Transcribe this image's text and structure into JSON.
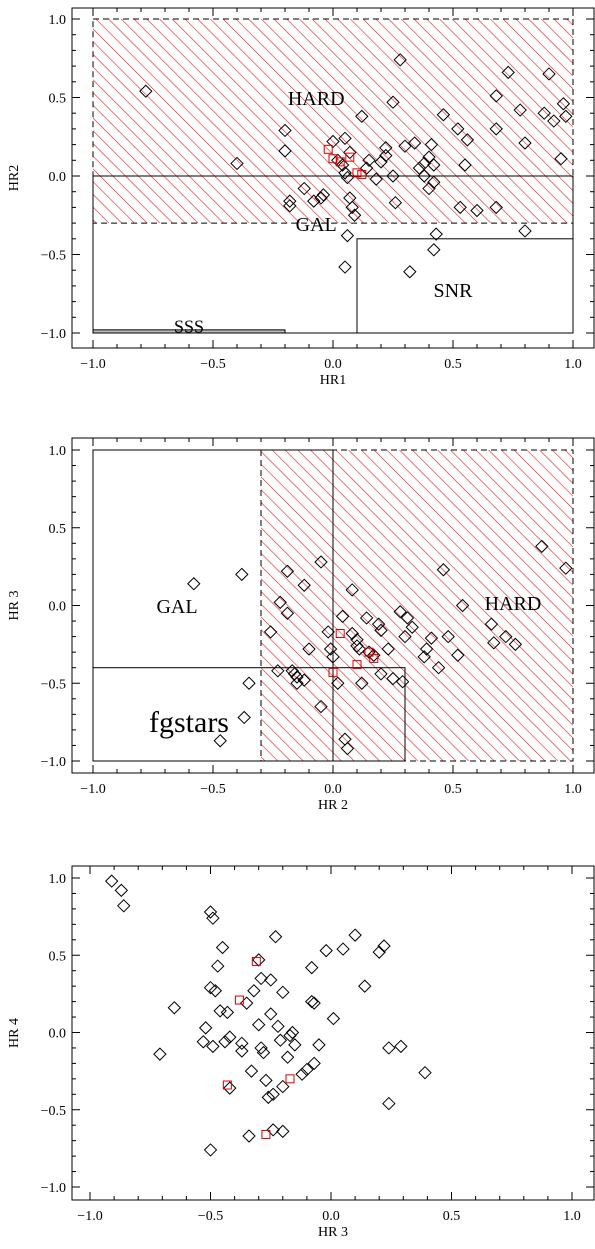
{
  "chart_data": [
    {
      "type": "scatter",
      "xlabel": "HR1",
      "ylabel": "HR2",
      "xlim": [
        -1.0,
        1.0
      ],
      "ylim": [
        -1.05,
        1.05
      ],
      "xticks": [
        "−1.0",
        "−0.5",
        "0.0",
        "0.5",
        "1.0"
      ],
      "yticks": [
        "−1.0",
        "−0.5",
        "0.0",
        "0.5",
        "1.0"
      ],
      "xtick_values": [
        -1.0,
        -0.5,
        0.0,
        0.5,
        1.0
      ],
      "ytick_values": [
        -1.0,
        -0.5,
        0.0,
        0.5,
        1.0
      ],
      "regions": [
        {
          "label": "HARD",
          "x0": -1.0,
          "x1": 1.0,
          "y0": -0.3,
          "y1": 1.0,
          "hatched": true
        },
        {
          "label": "GAL",
          "x0": -1.0,
          "x1": 1.0,
          "y0": -1.0,
          "y1": 0.0,
          "hatched": false
        },
        {
          "label": "SNR",
          "x0": 0.1,
          "x1": 1.0,
          "y0": -1.0,
          "y1": -0.4,
          "hatched": false
        },
        {
          "label": "SSS",
          "x0": -1.0,
          "x1": -0.2,
          "y0": -1.0,
          "y1": -0.98,
          "hatched": false
        }
      ],
      "region_labels": [
        {
          "text": "HARD",
          "x": -0.07,
          "y": 0.48
        },
        {
          "text": "GAL",
          "x": -0.07,
          "y": -0.32
        },
        {
          "text": "SNR",
          "x": 0.5,
          "y": -0.74
        },
        {
          "text": "SSS",
          "x": -0.6,
          "y": -0.97
        }
      ],
      "series": [
        {
          "marker": "diamond",
          "points": [
            [
              -0.78,
              0.54
            ],
            [
              -0.4,
              0.08
            ],
            [
              -0.2,
              0.29
            ],
            [
              -0.2,
              0.16
            ],
            [
              -0.18,
              -0.16
            ],
            [
              -0.18,
              -0.19
            ],
            [
              -0.12,
              -0.08
            ],
            [
              -0.08,
              -0.16
            ],
            [
              -0.05,
              -0.14
            ],
            [
              -0.04,
              -0.12
            ],
            [
              0.0,
              0.22
            ],
            [
              0.02,
              0.1
            ],
            [
              0.04,
              0.07
            ],
            [
              0.05,
              0.24
            ],
            [
              0.05,
              0.02
            ],
            [
              0.06,
              -0.01
            ],
            [
              0.07,
              0.15
            ],
            [
              0.07,
              -0.14
            ],
            [
              0.08,
              -0.2
            ],
            [
              0.09,
              -0.25
            ],
            [
              0.06,
              -0.38
            ],
            [
              0.05,
              -0.58
            ],
            [
              0.12,
              0.38
            ],
            [
              0.14,
              0.05
            ],
            [
              0.15,
              0.1
            ],
            [
              0.18,
              -0.02
            ],
            [
              0.2,
              0.09
            ],
            [
              0.22,
              0.13
            ],
            [
              0.22,
              0.18
            ],
            [
              0.25,
              0.0
            ],
            [
              0.28,
              0.74
            ],
            [
              0.25,
              0.47
            ],
            [
              0.26,
              -0.17
            ],
            [
              0.3,
              0.19
            ],
            [
              0.32,
              -0.61
            ],
            [
              0.34,
              0.21
            ],
            [
              0.36,
              0.05
            ],
            [
              0.38,
              0.08
            ],
            [
              0.38,
              0.0
            ],
            [
              0.4,
              0.12
            ],
            [
              0.4,
              -0.08
            ],
            [
              0.41,
              0.2
            ],
            [
              0.42,
              0.07
            ],
            [
              0.42,
              -0.04
            ],
            [
              0.42,
              -0.47
            ],
            [
              0.43,
              -0.37
            ],
            [
              0.46,
              0.39
            ],
            [
              0.52,
              0.3
            ],
            [
              0.53,
              -0.2
            ],
            [
              0.56,
              0.23
            ],
            [
              0.55,
              0.07
            ],
            [
              0.6,
              -0.22
            ],
            [
              0.68,
              0.3
            ],
            [
              0.68,
              0.51
            ],
            [
              0.68,
              -0.2
            ],
            [
              0.73,
              0.66
            ],
            [
              0.78,
              0.42
            ],
            [
              0.8,
              0.21
            ],
            [
              0.8,
              -0.35
            ],
            [
              0.88,
              0.4
            ],
            [
              0.9,
              0.65
            ],
            [
              0.92,
              0.35
            ],
            [
              0.95,
              0.11
            ],
            [
              0.96,
              0.46
            ],
            [
              0.97,
              0.38
            ]
          ]
        },
        {
          "marker": "square",
          "color": "#dd0000",
          "points": [
            [
              -0.02,
              0.17
            ],
            [
              0.0,
              0.11
            ],
            [
              0.03,
              0.09
            ],
            [
              0.07,
              0.12
            ],
            [
              0.1,
              0.02
            ],
            [
              0.12,
              0.01
            ]
          ]
        }
      ]
    },
    {
      "type": "scatter",
      "xlabel": "HR 2",
      "ylabel": "HR 3",
      "xlim": [
        -1.0,
        1.0
      ],
      "ylim": [
        -1.02,
        1.02
      ],
      "xticks": [
        "−1.0",
        "−0.5",
        "0.0",
        "0.5",
        "1.0"
      ],
      "yticks": [
        "−1.0",
        "−0.5",
        "0.0",
        "0.5",
        "1.0"
      ],
      "xtick_values": [
        -1.0,
        -0.5,
        0.0,
        0.5,
        1.0
      ],
      "ytick_values": [
        -1.0,
        -0.5,
        0.0,
        0.5,
        1.0
      ],
      "regions": [
        {
          "label": "HARD",
          "x0": -0.3,
          "x1": 1.0,
          "y0": -1.0,
          "y1": 1.0,
          "hatched": true
        },
        {
          "label": "GAL",
          "x0": -1.0,
          "x1": 0.0,
          "y0": -1.0,
          "y1": 1.0,
          "hatched": false
        },
        {
          "label": "fgstars",
          "x0": -1.0,
          "x1": 0.3,
          "y0": -1.0,
          "y1": -0.4,
          "hatched": false
        }
      ],
      "region_labels": [
        {
          "text": "GAL",
          "x": -0.65,
          "y": -0.02
        },
        {
          "text": "HARD",
          "x": 0.75,
          "y": 0.0
        },
        {
          "text": "fgstars",
          "x": -0.6,
          "y": -0.77
        }
      ],
      "series": [
        {
          "marker": "diamond",
          "points": [
            [
              -0.58,
              0.14
            ],
            [
              -0.38,
              0.2
            ],
            [
              -0.35,
              -0.5
            ],
            [
              -0.37,
              -0.72
            ],
            [
              -0.47,
              -0.87
            ],
            [
              -0.26,
              -0.17
            ],
            [
              -0.23,
              -0.42
            ],
            [
              -0.22,
              0.02
            ],
            [
              -0.19,
              0.22
            ],
            [
              -0.19,
              -0.05
            ],
            [
              -0.17,
              -0.42
            ],
            [
              -0.15,
              -0.46
            ],
            [
              -0.15,
              -0.5
            ],
            [
              -0.16,
              -0.44
            ],
            [
              -0.12,
              0.13
            ],
            [
              -0.12,
              -0.48
            ],
            [
              -0.1,
              -0.28
            ],
            [
              -0.05,
              0.28
            ],
            [
              -0.05,
              -0.65
            ],
            [
              -0.02,
              -0.17
            ],
            [
              -0.01,
              -0.28
            ],
            [
              0.0,
              -0.33
            ],
            [
              0.02,
              -0.5
            ],
            [
              0.04,
              -0.07
            ],
            [
              0.05,
              -0.86
            ],
            [
              0.06,
              -0.92
            ],
            [
              0.08,
              0.1
            ],
            [
              0.08,
              -0.18
            ],
            [
              0.1,
              -0.22
            ],
            [
              0.1,
              -0.26
            ],
            [
              0.11,
              -0.28
            ],
            [
              0.12,
              -0.5
            ],
            [
              0.14,
              -0.08
            ],
            [
              0.15,
              -0.3
            ],
            [
              0.17,
              -0.32
            ],
            [
              0.19,
              -0.12
            ],
            [
              0.2,
              -0.16
            ],
            [
              0.2,
              -0.44
            ],
            [
              0.23,
              -0.28
            ],
            [
              0.25,
              -0.47
            ],
            [
              0.28,
              -0.04
            ],
            [
              0.29,
              -0.49
            ],
            [
              0.3,
              -0.2
            ],
            [
              0.31,
              -0.08
            ],
            [
              0.33,
              -0.14
            ],
            [
              0.38,
              -0.33
            ],
            [
              0.39,
              -0.28
            ],
            [
              0.41,
              -0.21
            ],
            [
              0.44,
              -0.4
            ],
            [
              0.46,
              0.23
            ],
            [
              0.48,
              -0.2
            ],
            [
              0.52,
              -0.32
            ],
            [
              0.54,
              0.0
            ],
            [
              0.66,
              -0.12
            ],
            [
              0.67,
              -0.24
            ],
            [
              0.72,
              -0.2
            ],
            [
              0.76,
              -0.25
            ],
            [
              0.87,
              0.38
            ],
            [
              0.97,
              0.24
            ]
          ]
        },
        {
          "marker": "square",
          "color": "#dd0000",
          "points": [
            [
              0.0,
              -0.43
            ],
            [
              0.03,
              -0.18
            ],
            [
              0.1,
              -0.38
            ],
            [
              0.15,
              -0.3
            ],
            [
              0.17,
              -0.34
            ]
          ]
        }
      ]
    },
    {
      "type": "scatter",
      "xlabel": "HR 3",
      "ylabel": "HR 4",
      "xlim": [
        -1.07,
        1.07
      ],
      "ylim": [
        -1.1,
        1.1
      ],
      "xticks": [
        "−1.0",
        "−0.5",
        "0.0",
        "0.5",
        "1.0"
      ],
      "yticks": [
        "−1.0",
        "−0.5",
        "0.0",
        "0.5",
        "1.0"
      ],
      "xtick_values": [
        -1.0,
        -0.5,
        0.0,
        0.5,
        1.0
      ],
      "ytick_values": [
        -1.0,
        -0.5,
        0.0,
        0.5,
        1.0
      ],
      "regions": [],
      "region_labels": [],
      "series": [
        {
          "marker": "diamond",
          "points": [
            [
              -0.91,
              0.98
            ],
            [
              -0.87,
              0.92
            ],
            [
              -0.86,
              0.82
            ],
            [
              -0.71,
              -0.14
            ],
            [
              -0.65,
              0.16
            ],
            [
              -0.53,
              -0.06
            ],
            [
              -0.52,
              0.03
            ],
            [
              -0.5,
              0.78
            ],
            [
              -0.49,
              0.74
            ],
            [
              -0.5,
              0.29
            ],
            [
              -0.48,
              0.27
            ],
            [
              -0.49,
              -0.09
            ],
            [
              -0.5,
              -0.76
            ],
            [
              -0.47,
              0.43
            ],
            [
              -0.46,
              0.14
            ],
            [
              -0.45,
              0.55
            ],
            [
              -0.44,
              -0.06
            ],
            [
              -0.42,
              -0.03
            ],
            [
              -0.43,
              0.13
            ],
            [
              -0.42,
              -0.36
            ],
            [
              -0.37,
              -0.07
            ],
            [
              -0.37,
              -0.12
            ],
            [
              -0.35,
              0.19
            ],
            [
              -0.34,
              -0.67
            ],
            [
              -0.33,
              -0.25
            ],
            [
              -0.32,
              0.27
            ],
            [
              -0.3,
              0.47
            ],
            [
              -0.3,
              0.05
            ],
            [
              -0.29,
              -0.1
            ],
            [
              -0.29,
              0.35
            ],
            [
              -0.28,
              -0.13
            ],
            [
              -0.27,
              -0.31
            ],
            [
              -0.26,
              -0.42
            ],
            [
              -0.25,
              0.34
            ],
            [
              -0.25,
              0.12
            ],
            [
              -0.24,
              -0.63
            ],
            [
              -0.24,
              -0.4
            ],
            [
              -0.23,
              0.62
            ],
            [
              -0.22,
              0.04
            ],
            [
              -0.21,
              -0.05
            ],
            [
              -0.2,
              -0.35
            ],
            [
              -0.2,
              0.26
            ],
            [
              -0.2,
              -0.64
            ],
            [
              -0.18,
              -0.16
            ],
            [
              -0.17,
              -0.02
            ],
            [
              -0.16,
              0.0
            ],
            [
              -0.15,
              -0.08
            ],
            [
              -0.12,
              -0.27
            ],
            [
              -0.1,
              -0.24
            ],
            [
              -0.08,
              0.2
            ],
            [
              -0.07,
              0.19
            ],
            [
              -0.08,
              0.42
            ],
            [
              -0.07,
              -0.2
            ],
            [
              -0.05,
              -0.08
            ],
            [
              -0.02,
              0.53
            ],
            [
              0.01,
              0.09
            ],
            [
              0.05,
              0.54
            ],
            [
              0.1,
              0.63
            ],
            [
              0.14,
              0.3
            ],
            [
              0.2,
              0.52
            ],
            [
              0.22,
              0.56
            ],
            [
              0.24,
              -0.1
            ],
            [
              0.24,
              -0.46
            ],
            [
              0.29,
              -0.09
            ],
            [
              0.39,
              -0.26
            ]
          ]
        },
        {
          "marker": "square",
          "color": "#dd0000",
          "points": [
            [
              -0.38,
              0.21
            ],
            [
              -0.31,
              0.46
            ],
            [
              -0.43,
              -0.34
            ],
            [
              -0.27,
              -0.66
            ],
            [
              -0.17,
              -0.3
            ]
          ]
        }
      ]
    }
  ]
}
